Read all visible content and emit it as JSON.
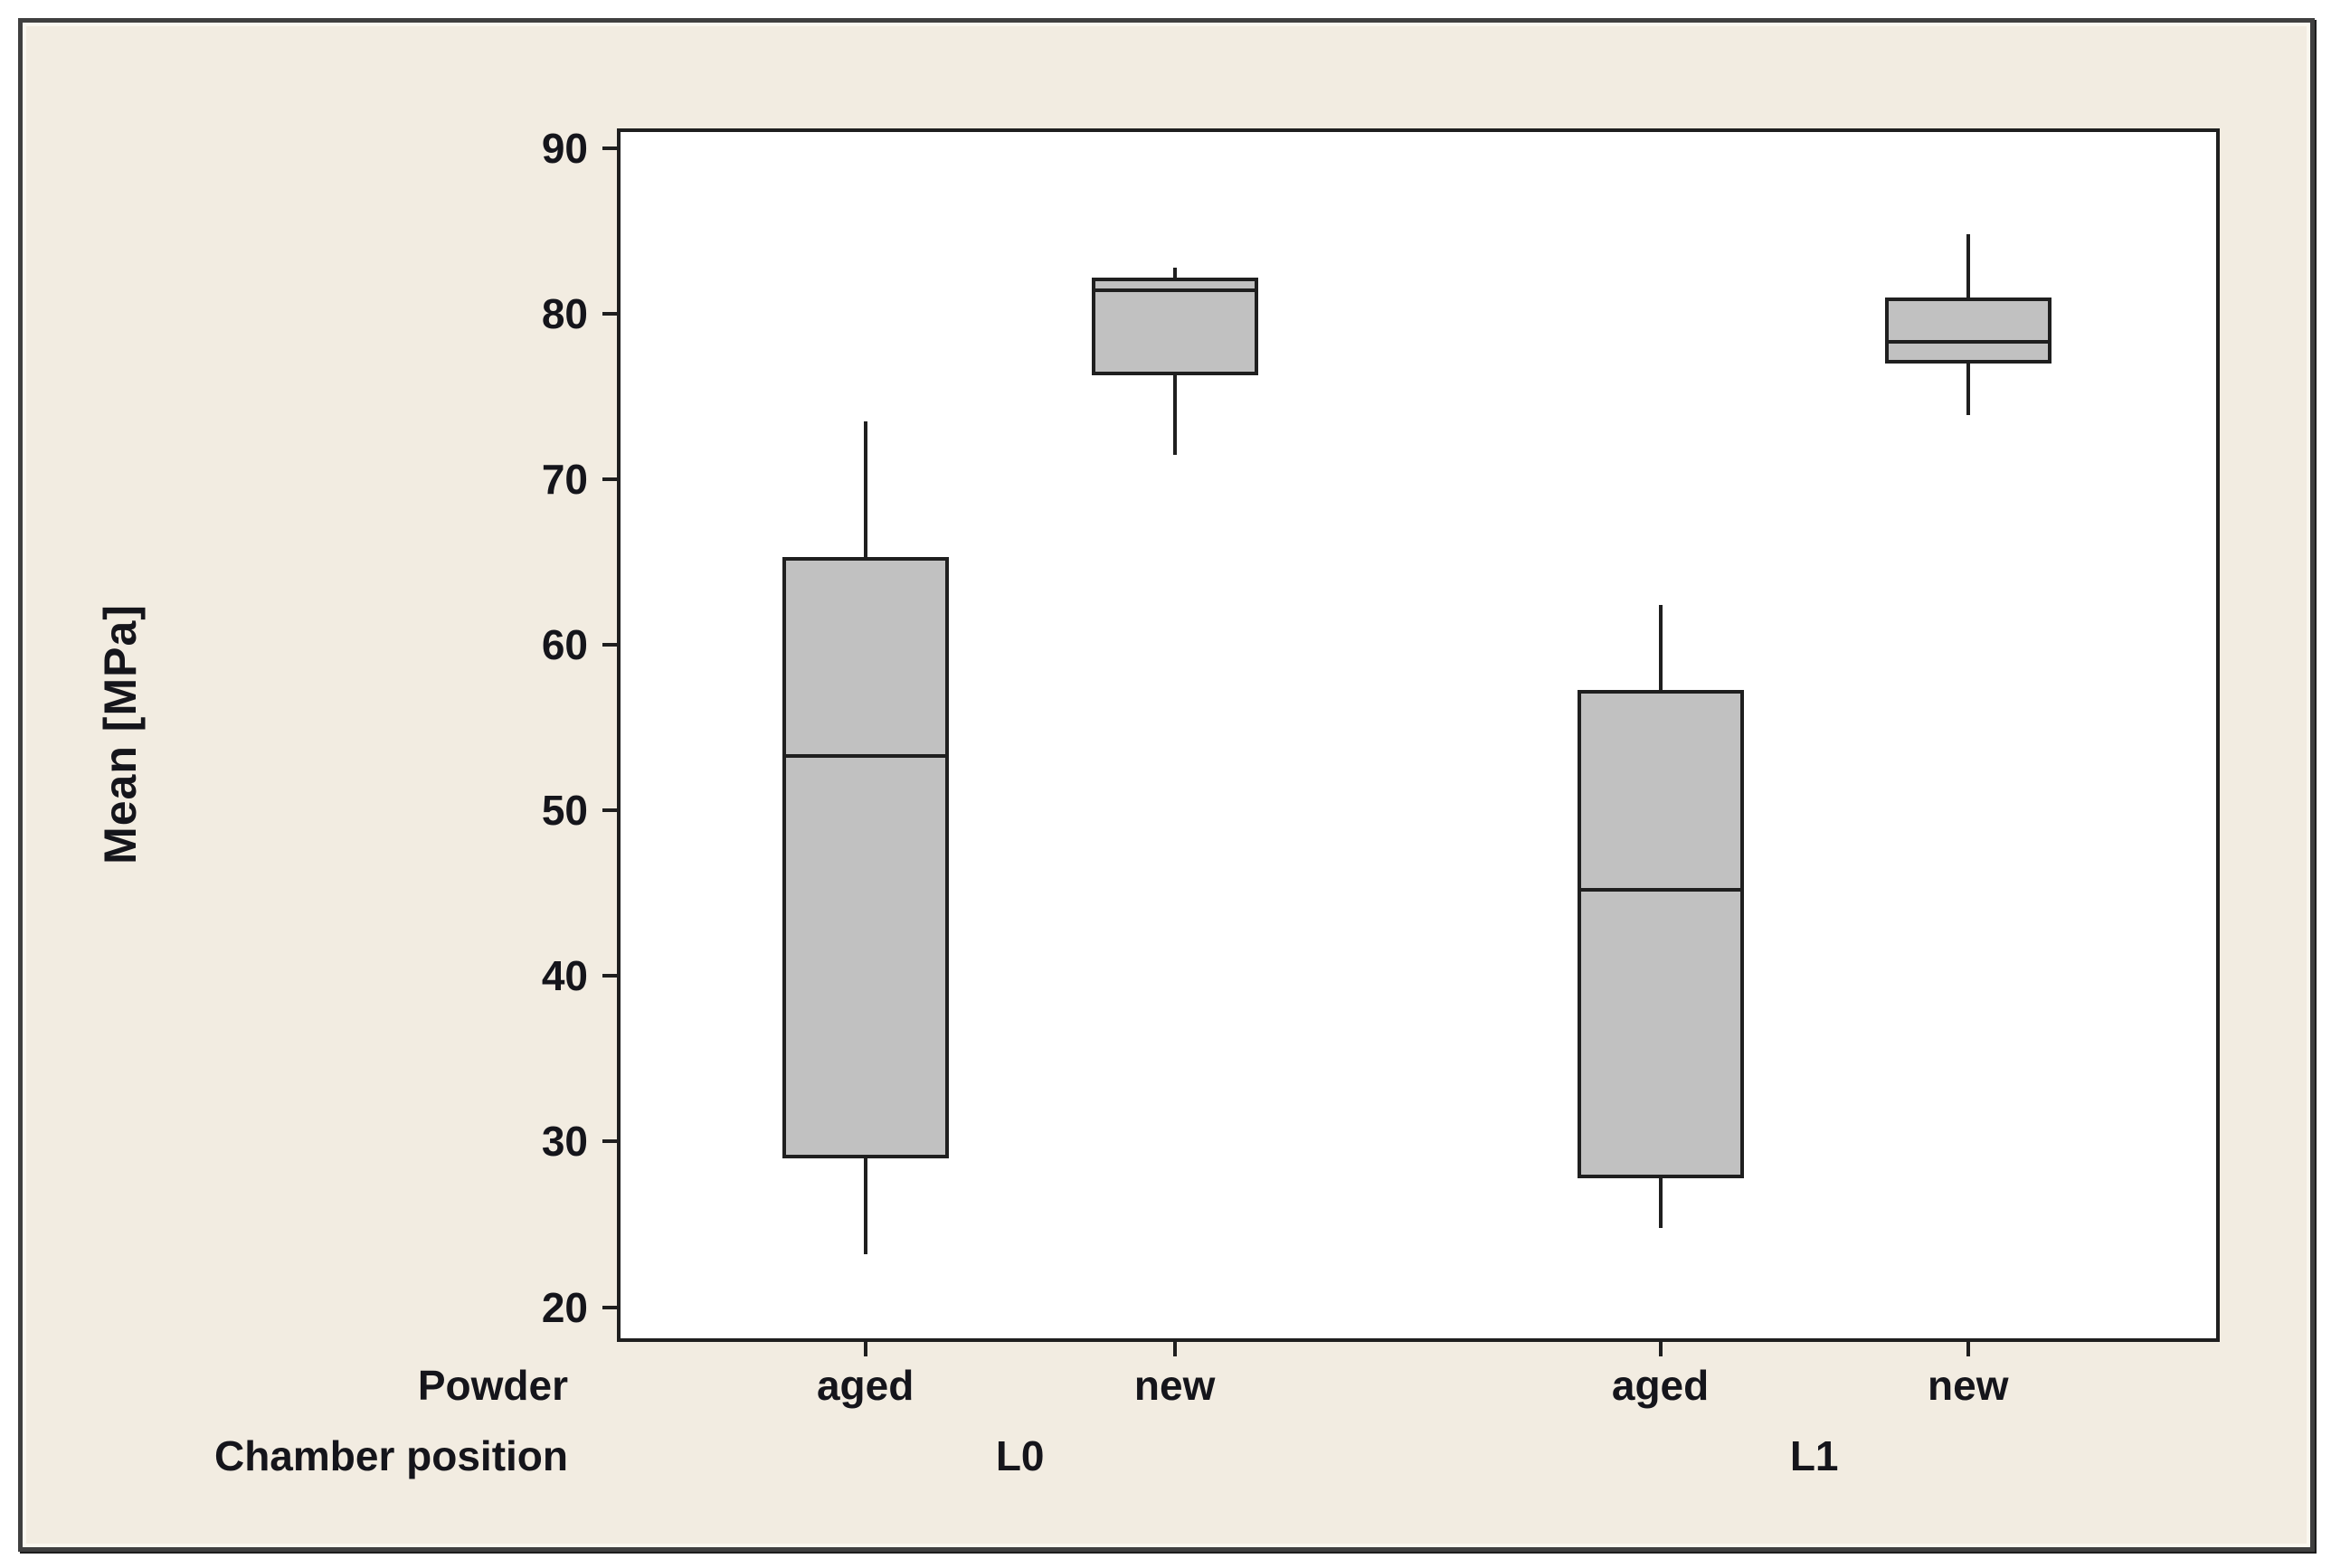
{
  "window": {
    "background": "#ffffff",
    "frame_border_color": "#3f3f3f",
    "canvas_color": "#f2ece1",
    "inner_highlight_color": "#faf7ef"
  },
  "chart_data": {
    "type": "boxplot",
    "title": "",
    "ylabel": "Mean [MPa]",
    "xlabel": "",
    "grid": false,
    "legend_position": "none",
    "y_axis": {
      "min": 17.9,
      "max": 91.2,
      "ticks": [
        20,
        30,
        40,
        50,
        60,
        70,
        80,
        90
      ]
    },
    "x_axis_rows": [
      {
        "name": "Powder"
      },
      {
        "name": "Chamber position"
      }
    ],
    "series": [
      {
        "powder": "aged",
        "chamber_position": "L0",
        "min": 23.2,
        "q1": 29.0,
        "median": 53.3,
        "q3": 65.3,
        "max": 73.5
      },
      {
        "powder": "new",
        "chamber_position": "L0",
        "min": 71.5,
        "q1": 76.3,
        "median": 81.4,
        "q3": 82.2,
        "max": 82.8
      },
      {
        "powder": "aged",
        "chamber_position": "L1",
        "min": 24.8,
        "q1": 27.8,
        "median": 45.2,
        "q3": 57.3,
        "max": 62.4
      },
      {
        "powder": "new",
        "chamber_position": "L1",
        "min": 73.9,
        "q1": 77.0,
        "median": 78.3,
        "q3": 81.0,
        "max": 84.8
      }
    ],
    "groups": [
      {
        "label": "L0",
        "series_indexes": [
          0,
          1
        ]
      },
      {
        "label": "L1",
        "series_indexes": [
          2,
          3
        ]
      }
    ],
    "colors": {
      "box_fill": "#c1c1c1",
      "line": "#1f1f1f",
      "text": "#15151b",
      "plot_background": "#ffffff"
    }
  }
}
